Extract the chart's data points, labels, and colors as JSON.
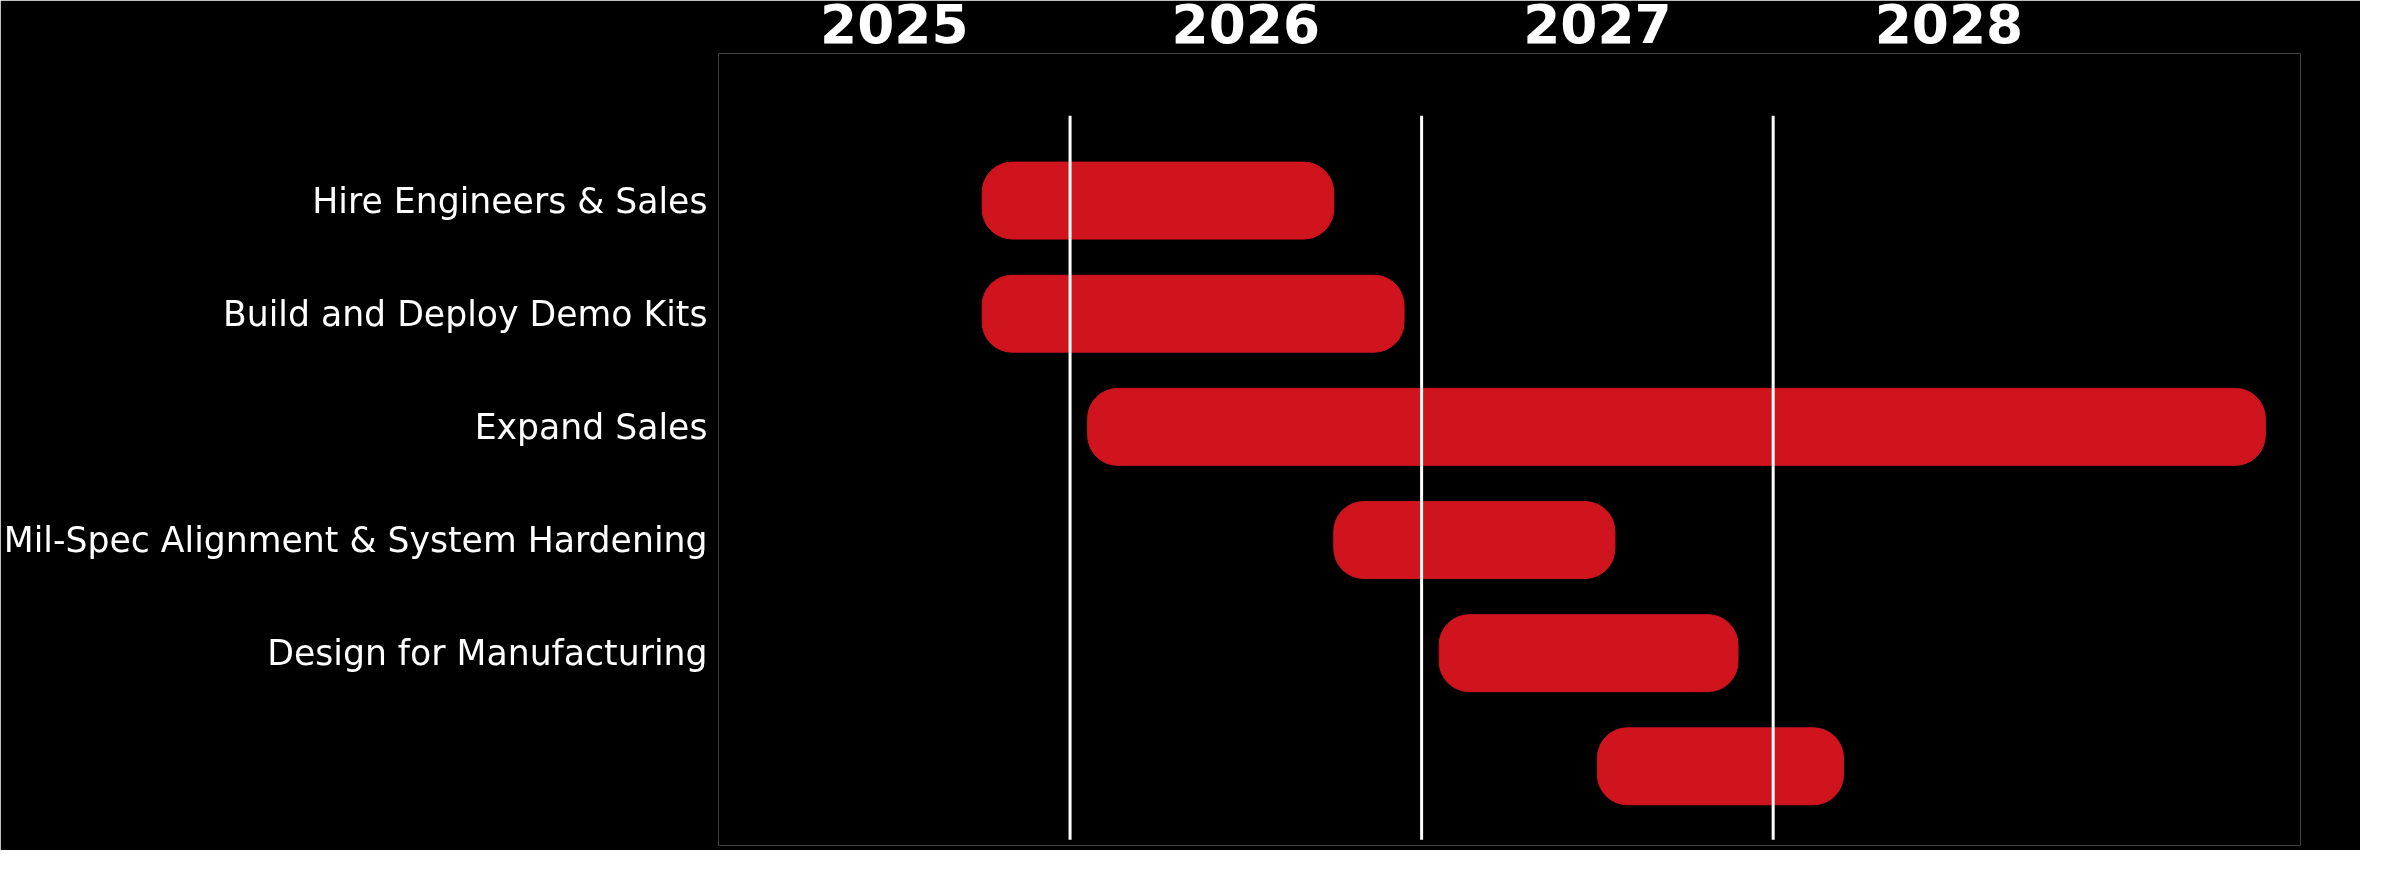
{
  "chart_data": {
    "type": "bar",
    "orientation": "horizontal",
    "categories": [
      "Hire Engineers & Sales",
      "Build and Deploy Demo Kits",
      "Expand Sales",
      "Mil-Spec Alignment & System Hardening",
      "Design for Manufacturing",
      null
    ],
    "base": [
      2025.75,
      2025.75,
      2026.05,
      2026.75,
      2027.05,
      2027.5
    ],
    "values": [
      1.0,
      1.2,
      3.35,
      0.8,
      0.85,
      0.7
    ],
    "color": "#d0141e",
    "xlim": [
      2025.0,
      2029.5
    ],
    "xticks": [
      {
        "value": 2025.5,
        "label": "2025"
      },
      {
        "value": 2026.5,
        "label": "2026"
      },
      {
        "value": 2027.5,
        "label": "2027"
      },
      {
        "value": 2028.5,
        "label": "2028"
      }
    ],
    "ref_lines": [
      {
        "axis": "x",
        "value": 2026,
        "color": "#ffffff"
      },
      {
        "axis": "x",
        "value": 2027,
        "color": "#ffffff"
      },
      {
        "axis": "x",
        "value": 2028,
        "color": "#ffffff"
      }
    ],
    "grid": false
  }
}
